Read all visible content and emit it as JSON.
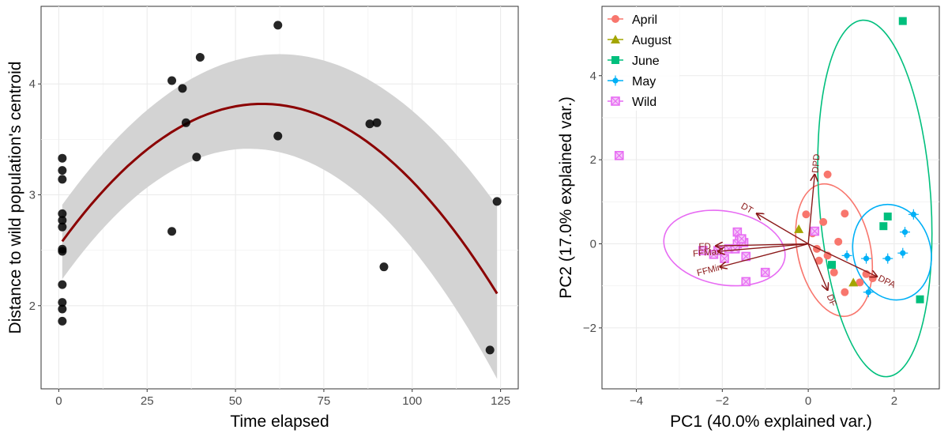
{
  "chart_data": [
    {
      "type": "scatter",
      "xlabel": "Time elapsed",
      "ylabel": "Distance to wild population's centroid",
      "xlim": [
        -5,
        130
      ],
      "ylim": [
        1.25,
        4.7
      ],
      "xticks": [
        0,
        25,
        50,
        75,
        100,
        125
      ],
      "yticks": [
        2,
        3,
        4
      ],
      "xtick_labels": [
        "0",
        "25",
        "50",
        "75",
        "100",
        "125"
      ],
      "ytick_labels": [
        "2",
        "3",
        "4"
      ],
      "grid": true,
      "points": [
        {
          "x": 1,
          "y": 3.33
        },
        {
          "x": 1,
          "y": 3.22
        },
        {
          "x": 1,
          "y": 3.14
        },
        {
          "x": 1,
          "y": 2.83
        },
        {
          "x": 1,
          "y": 2.77
        },
        {
          "x": 1,
          "y": 2.71
        },
        {
          "x": 1,
          "y": 2.51
        },
        {
          "x": 1,
          "y": 2.49
        },
        {
          "x": 1,
          "y": 2.19
        },
        {
          "x": 1,
          "y": 2.03
        },
        {
          "x": 1,
          "y": 1.97
        },
        {
          "x": 1,
          "y": 1.86
        },
        {
          "x": 32,
          "y": 4.03
        },
        {
          "x": 32,
          "y": 2.67
        },
        {
          "x": 35,
          "y": 3.96
        },
        {
          "x": 36,
          "y": 3.65
        },
        {
          "x": 39,
          "y": 3.34
        },
        {
          "x": 40,
          "y": 4.24
        },
        {
          "x": 62,
          "y": 4.53
        },
        {
          "x": 62,
          "y": 3.53
        },
        {
          "x": 88,
          "y": 3.64
        },
        {
          "x": 90,
          "y": 3.65
        },
        {
          "x": 92,
          "y": 2.35
        },
        {
          "x": 122,
          "y": 1.6
        },
        {
          "x": 124,
          "y": 2.94
        }
      ],
      "fit": {
        "model": "quadratic",
        "x_range": [
          1,
          124
        ],
        "vertex_x": 57.5,
        "curve": [
          [
            1,
            2.58
          ],
          [
            57.5,
            3.82
          ],
          [
            124,
            2.11
          ]
        ],
        "ci_lower": [
          [
            1,
            2.24
          ],
          [
            57.5,
            3.41
          ],
          [
            124,
            1.34
          ]
        ],
        "ci_upper": [
          [
            1,
            2.91
          ],
          [
            57.5,
            4.26
          ],
          [
            124,
            2.9
          ]
        ],
        "line_color": "#8b0000",
        "band_color": "#d3d3d3"
      }
    },
    {
      "type": "scatter",
      "xlabel": "PC1 (40.0% explained var.)",
      "ylabel": "PC2 (17.0% explained var.)",
      "xlim": [
        -4.8,
        3.05
      ],
      "ylim": [
        -3.45,
        5.65
      ],
      "xticks": [
        -4,
        -2,
        0,
        2
      ],
      "yticks": [
        -2,
        0,
        2,
        4
      ],
      "xtick_labels": [
        "−4",
        "−2",
        "0",
        "2"
      ],
      "ytick_labels": [
        "−2",
        "0",
        "2",
        "4"
      ],
      "grid": true,
      "legend_position": "top-left",
      "series": [
        {
          "name": "April",
          "color": "#f8766d",
          "marker": "circle",
          "points": [
            [
              0.45,
              1.65
            ],
            [
              -0.05,
              0.7
            ],
            [
              0.85,
              0.72
            ],
            [
              0.35,
              0.52
            ],
            [
              0.1,
              0.25
            ],
            [
              0.2,
              -0.12
            ],
            [
              0.7,
              0.05
            ],
            [
              0.45,
              -0.28
            ],
            [
              0.25,
              -0.4
            ],
            [
              0.6,
              -0.68
            ],
            [
              0.85,
              -1.15
            ],
            [
              1.35,
              -0.72
            ],
            [
              1.5,
              -0.82
            ],
            [
              1.2,
              -0.92
            ]
          ]
        },
        {
          "name": "August",
          "color": "#a3a500",
          "marker": "triangle",
          "points": [
            [
              -0.22,
              0.35
            ],
            [
              1.05,
              -0.92
            ]
          ]
        },
        {
          "name": "June",
          "color": "#00bf7d",
          "marker": "square",
          "points": [
            [
              2.2,
              5.3
            ],
            [
              1.85,
              0.65
            ],
            [
              1.75,
              0.42
            ],
            [
              0.55,
              -0.5
            ],
            [
              2.6,
              -1.32
            ]
          ]
        },
        {
          "name": "May",
          "color": "#00b0f6",
          "marker": "cross-circle",
          "points": [
            [
              2.45,
              0.7
            ],
            [
              2.25,
              0.28
            ],
            [
              0.9,
              -0.28
            ],
            [
              2.2,
              -0.22
            ],
            [
              1.85,
              -0.35
            ],
            [
              1.35,
              -0.35
            ],
            [
              1.4,
              -1.15
            ]
          ]
        },
        {
          "name": "Wild",
          "color": "#e76bf3",
          "marker": "boxed-cross",
          "points": [
            [
              -4.4,
              2.1
            ],
            [
              -1.65,
              0.28
            ],
            [
              -1.6,
              0.1
            ],
            [
              -1.65,
              0.0
            ],
            [
              -1.5,
              0.03
            ],
            [
              -1.55,
              0.12
            ],
            [
              -1.85,
              -0.12
            ],
            [
              -2.1,
              -0.16
            ],
            [
              -2.2,
              -0.25
            ],
            [
              -2.45,
              -0.16
            ],
            [
              -1.95,
              -0.35
            ],
            [
              -1.45,
              -0.3
            ],
            [
              -1.45,
              -0.9
            ],
            [
              -1.0,
              -0.68
            ],
            [
              0.15,
              0.3
            ],
            [
              -1.7,
              -0.12
            ]
          ]
        }
      ],
      "ellipses": [
        {
          "series": "April",
          "center": [
            0.6,
            -0.15
          ],
          "width": 1.7,
          "height": 3.2,
          "angle": -12
        },
        {
          "series": "June",
          "center": [
            1.55,
            1.08
          ],
          "width": 2.6,
          "height": 8.5,
          "angle": -4
        },
        {
          "series": "May",
          "center": [
            1.95,
            -0.2
          ],
          "width": 1.8,
          "height": 2.3,
          "angle": -15
        },
        {
          "series": "Wild",
          "center": [
            -1.95,
            -0.1
          ],
          "width": 2.85,
          "height": 1.75,
          "angle": 10
        }
      ],
      "vectors": [
        {
          "label": "DPD",
          "x": 0.15,
          "y": 1.65
        },
        {
          "label": "DT",
          "x": -1.2,
          "y": 0.72
        },
        {
          "label": "FFMax",
          "x": -2.1,
          "y": -0.18
        },
        {
          "label": "FFMin",
          "x": -2.05,
          "y": -0.55
        },
        {
          "label": "FD",
          "x": -2.15,
          "y": -0.05
        },
        {
          "label": "DF",
          "x": 0.45,
          "y": -1.1
        },
        {
          "label": "DPA",
          "x": 1.6,
          "y": -0.78
        }
      ],
      "vector_color": "#8b1a1a"
    }
  ]
}
